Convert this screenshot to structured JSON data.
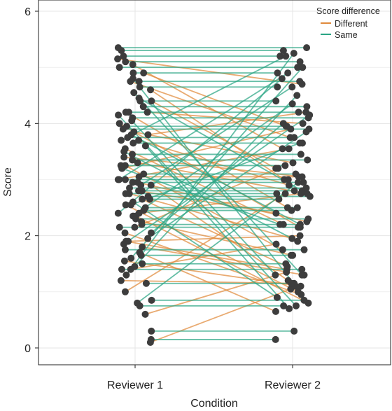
{
  "chart_data": {
    "type": "line",
    "title": "",
    "xlabel": "Condition",
    "ylabel": "Score",
    "categories": [
      "Reviewer 1",
      "Reviewer 2"
    ],
    "ylim": [
      -0.3,
      6.2
    ],
    "yticks": [
      "0",
      "2",
      "4",
      "6"
    ],
    "grid": true,
    "legend": {
      "title": "Score difference",
      "placement": "top-right"
    },
    "colors": {
      "Different": "#e08a3c",
      "Same": "#2aa584",
      "point": "#3d3d3d",
      "grid": "#e6e6e6"
    },
    "series": [
      {
        "name": "Different",
        "pairs": [
          [
            5.15,
            4.7
          ],
          [
            5.05,
            3.55
          ],
          [
            4.9,
            3.95
          ],
          [
            4.6,
            3.0
          ],
          [
            4.4,
            3.2
          ],
          [
            4.2,
            4.0
          ],
          [
            4.2,
            2.5
          ],
          [
            4.0,
            2.15
          ],
          [
            3.85,
            3.3
          ],
          [
            3.7,
            2.9
          ],
          [
            3.55,
            2.2
          ],
          [
            3.4,
            3.05
          ],
          [
            3.3,
            2.75
          ],
          [
            3.25,
            1.75
          ],
          [
            3.2,
            3.9
          ],
          [
            3.05,
            3.05
          ],
          [
            3.0,
            3.55
          ],
          [
            2.9,
            1.2
          ],
          [
            2.8,
            2.4
          ],
          [
            2.75,
            1.95
          ],
          [
            2.65,
            1.45
          ],
          [
            2.55,
            1.0
          ],
          [
            2.4,
            2.75
          ],
          [
            2.35,
            0.8
          ],
          [
            2.25,
            1.65
          ],
          [
            2.15,
            3.2
          ],
          [
            2.05,
            0.95
          ],
          [
            1.9,
            1.4
          ],
          [
            1.9,
            2.0
          ],
          [
            1.8,
            1.3
          ],
          [
            1.7,
            0.65
          ],
          [
            1.55,
            1.1
          ],
          [
            1.4,
            1.85
          ],
          [
            1.0,
            2.75
          ],
          [
            0.6,
            1.35
          ],
          [
            0.1,
            1.05
          ],
          [
            3.8,
            4.2
          ],
          [
            4.75,
            3.75
          ],
          [
            2.95,
            2.25
          ],
          [
            1.2,
            1.15
          ]
        ]
      },
      {
        "name": "Same",
        "pairs": [
          [
            5.35,
            5.35
          ],
          [
            5.3,
            5.3
          ],
          [
            5.2,
            5.2
          ],
          [
            5.1,
            5.1
          ],
          [
            5.0,
            5.0
          ],
          [
            4.9,
            4.9
          ],
          [
            4.8,
            1.1
          ],
          [
            4.75,
            4.75
          ],
          [
            4.65,
            4.65
          ],
          [
            4.55,
            1.3
          ],
          [
            4.45,
            2.8
          ],
          [
            4.4,
            4.4
          ],
          [
            4.3,
            4.3
          ],
          [
            4.2,
            4.2
          ],
          [
            4.1,
            4.1
          ],
          [
            4.05,
            1.3
          ],
          [
            3.95,
            3.95
          ],
          [
            3.9,
            3.9
          ],
          [
            3.8,
            2.2
          ],
          [
            3.75,
            3.75
          ],
          [
            3.65,
            3.65
          ],
          [
            3.6,
            0.7
          ],
          [
            3.5,
            1.9
          ],
          [
            3.45,
            3.45
          ],
          [
            3.35,
            3.35
          ],
          [
            3.25,
            3.25
          ],
          [
            3.2,
            2.2
          ],
          [
            3.1,
            3.1
          ],
          [
            3.0,
            3.0
          ],
          [
            2.95,
            2.95
          ],
          [
            2.9,
            4.65
          ],
          [
            2.85,
            2.85
          ],
          [
            2.8,
            2.8
          ],
          [
            2.75,
            2.75
          ],
          [
            2.7,
            2.7
          ],
          [
            2.65,
            2.65
          ],
          [
            2.6,
            0.9
          ],
          [
            2.5,
            2.5
          ],
          [
            2.45,
            2.45
          ],
          [
            2.4,
            4.8
          ],
          [
            2.35,
            4.35
          ],
          [
            2.3,
            2.3
          ],
          [
            2.2,
            2.2
          ],
          [
            2.15,
            2.15
          ],
          [
            2.05,
            4.0
          ],
          [
            1.95,
            3.85
          ],
          [
            1.85,
            4.15
          ],
          [
            1.75,
            1.75
          ],
          [
            1.65,
            1.65
          ],
          [
            1.6,
            5.0
          ],
          [
            1.5,
            1.5
          ],
          [
            1.4,
            1.4
          ],
          [
            1.3,
            5.25
          ],
          [
            1.15,
            1.15
          ],
          [
            0.85,
            0.85
          ],
          [
            0.75,
            0.75
          ],
          [
            0.3,
            0.3
          ],
          [
            0.15,
            0.15
          ],
          [
            3.7,
            5.2
          ],
          [
            3.0,
            4.9
          ],
          [
            2.55,
            3.65
          ],
          [
            1.45,
            4.5
          ],
          [
            4.15,
            0.75
          ],
          [
            0.8,
            2.95
          ]
        ]
      }
    ]
  }
}
